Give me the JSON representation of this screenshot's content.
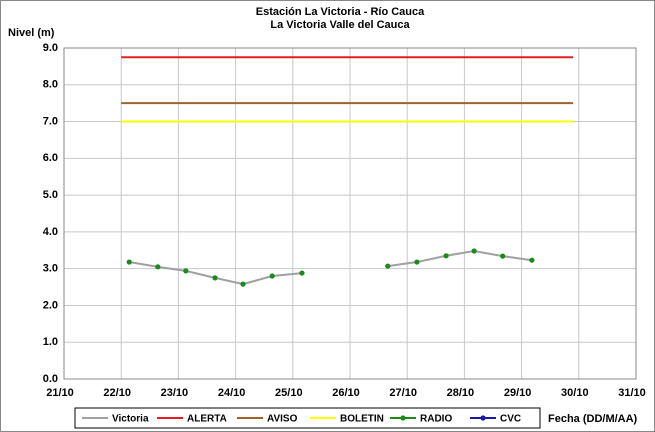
{
  "chart_data": {
    "type": "line",
    "title": "Estación La Victoria - Río Cauca",
    "subtitle": "La Victoria Valle del Cauca",
    "y_label": "Nivel (m)",
    "x_label": "Fecha (DD/M/AA)",
    "xlim": [
      21,
      31
    ],
    "xticks": [
      {
        "value": 21,
        "label": "21/10"
      },
      {
        "value": 22,
        "label": "22/10"
      },
      {
        "value": 23,
        "label": "23/10"
      },
      {
        "value": 24,
        "label": "24/10"
      },
      {
        "value": 25,
        "label": "25/10"
      },
      {
        "value": 26,
        "label": "26/10"
      },
      {
        "value": 27,
        "label": "27/10"
      },
      {
        "value": 28,
        "label": "28/10"
      },
      {
        "value": 29,
        "label": "29/10"
      },
      {
        "value": 30,
        "label": "30/10"
      },
      {
        "value": 31,
        "label": "31/10"
      }
    ],
    "ylim": [
      0,
      9
    ],
    "yticks": [
      {
        "value": 0,
        "label": "0.0"
      },
      {
        "value": 1,
        "label": "1.0"
      },
      {
        "value": 2,
        "label": "2.0"
      },
      {
        "value": 3,
        "label": "3.0"
      },
      {
        "value": 4,
        "label": "4.0"
      },
      {
        "value": 5,
        "label": "5.0"
      },
      {
        "value": 6,
        "label": "6.0"
      },
      {
        "value": 7,
        "label": "7.0"
      },
      {
        "value": 8,
        "label": "8.0"
      },
      {
        "value": 9,
        "label": "9.0"
      }
    ],
    "grid": true,
    "legend": "bottom",
    "series": [
      {
        "name": "Victoria",
        "color": "#a0a0a0",
        "line": true,
        "marker": false,
        "x": [
          22.14,
          22.64,
          23.13,
          23.64,
          24.13,
          24.64,
          25.16,
          null,
          26.66,
          27.17,
          27.68,
          28.17,
          28.67,
          29.18
        ],
        "values": [
          3.18,
          3.05,
          2.94,
          2.75,
          2.58,
          2.8,
          2.88,
          null,
          3.07,
          3.18,
          3.35,
          3.48,
          3.34,
          3.23
        ]
      },
      {
        "name": "ALERTA",
        "color": "#e02020",
        "line": true,
        "marker": false,
        "x": [
          22.0,
          29.9
        ],
        "values": [
          8.75,
          8.75
        ]
      },
      {
        "name": "AVISO",
        "color": "#a0622d",
        "line": true,
        "marker": false,
        "x": [
          22.0,
          29.9
        ],
        "values": [
          7.5,
          7.5
        ]
      },
      {
        "name": "BOLETIN",
        "color": "#ffff00",
        "line": true,
        "marker": false,
        "x": [
          22.0,
          29.9
        ],
        "values": [
          7.0,
          7.0
        ]
      },
      {
        "name": "RADIO",
        "color": "#1a8a1a",
        "line": false,
        "marker": true,
        "x": [
          22.14,
          22.64,
          23.13,
          23.64,
          24.13,
          24.64,
          25.16,
          null,
          26.66,
          27.17,
          27.68,
          28.17,
          28.67,
          29.18
        ],
        "values": [
          3.18,
          3.05,
          2.94,
          2.75,
          2.58,
          2.8,
          2.88,
          null,
          3.07,
          3.18,
          3.35,
          3.48,
          3.34,
          3.23
        ]
      },
      {
        "name": "CVC",
        "color": "#1a1aa0",
        "line": true,
        "marker": true,
        "x": [],
        "values": []
      }
    ]
  }
}
